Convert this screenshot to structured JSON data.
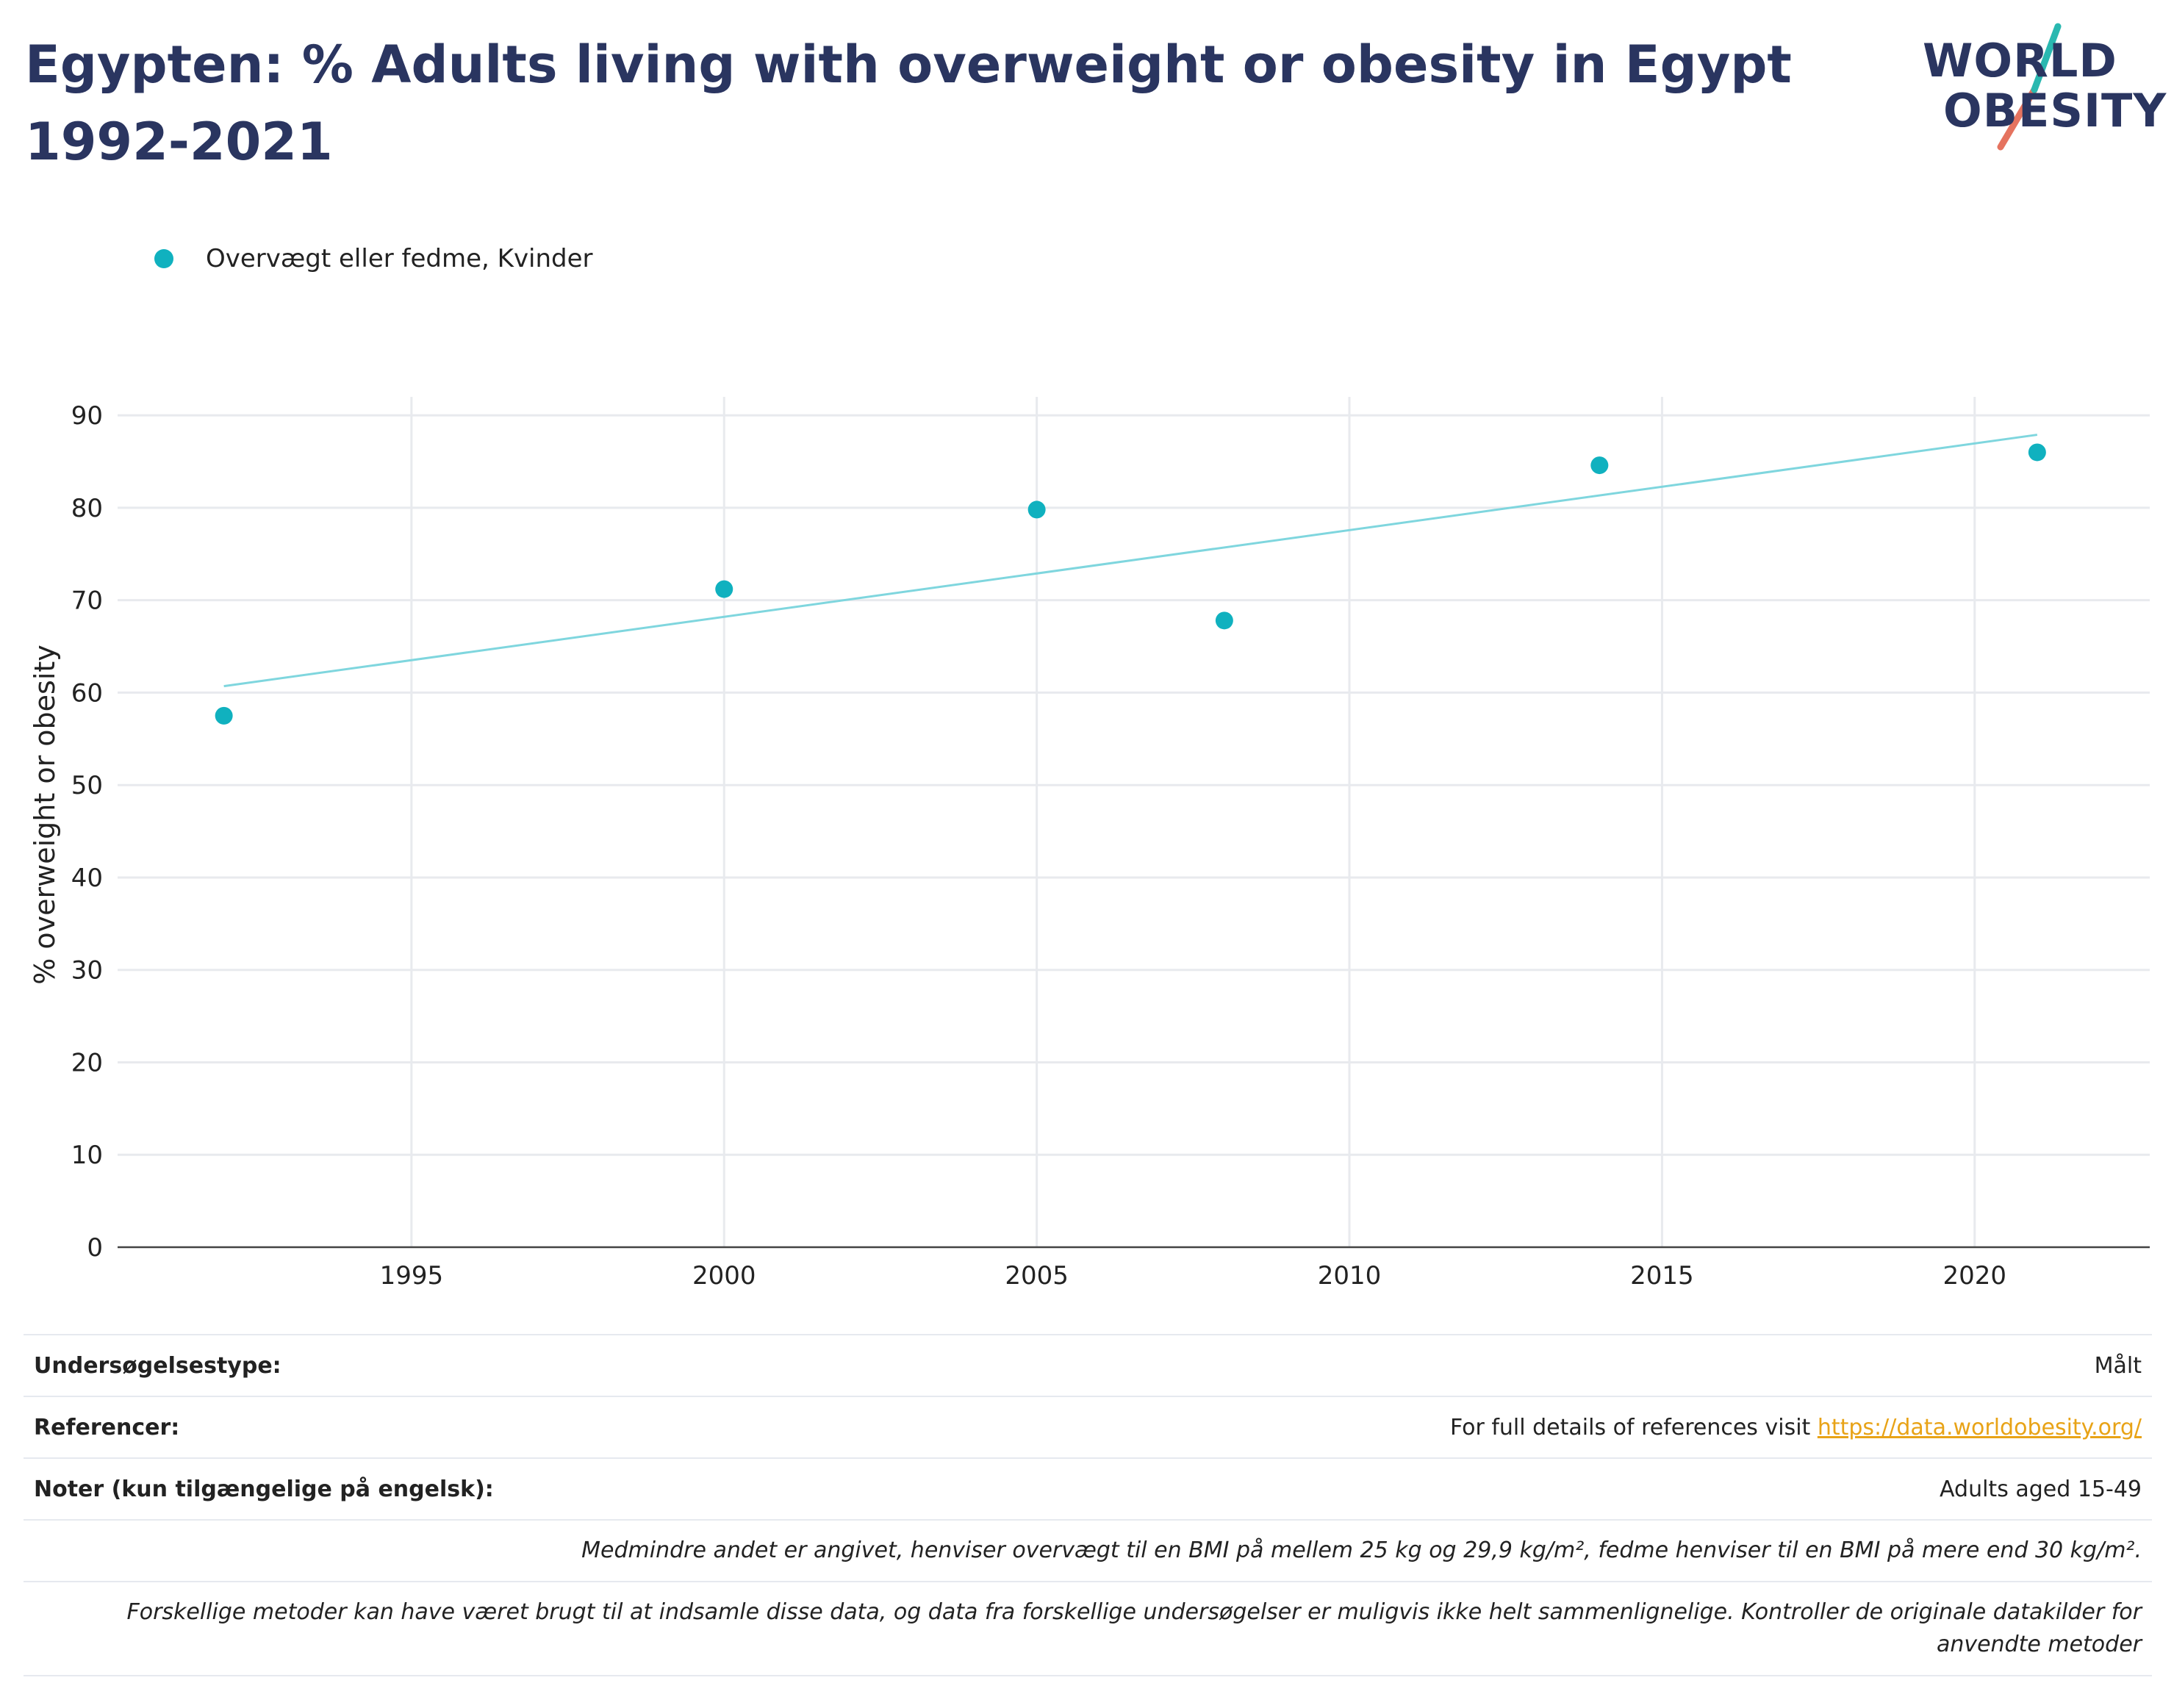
{
  "header": {
    "title": "Egypten: % Adults living with overweight or obesity in Egypt 1992-2021"
  },
  "logo": {
    "line1": "WORLD",
    "line2": "OBESITY",
    "accent_teal": "#2ab8b0",
    "accent_red": "#e5735f"
  },
  "legend": {
    "label": "Overvægt eller fedme, Kvinder"
  },
  "chart_data": {
    "type": "scatter",
    "title": "Egypten: % Adults living with overweight or obesity in Egypt 1992-2021",
    "xlabel": "",
    "ylabel": "% overweight or obesity",
    "xlim": [
      1990.3,
      2022.8
    ],
    "ylim": [
      0,
      92
    ],
    "xticks": [
      1995,
      2000,
      2005,
      2010,
      2015,
      2020
    ],
    "yticks": [
      0,
      10,
      20,
      30,
      40,
      50,
      60,
      70,
      80,
      90
    ],
    "grid": true,
    "legend_position": "top-left",
    "series": [
      {
        "name": "Overvægt eller fedme, Kvinder",
        "color": "#10b1bf",
        "points": [
          {
            "x": 1992,
            "y": 57.5
          },
          {
            "x": 2000,
            "y": 71.2
          },
          {
            "x": 2005,
            "y": 79.8
          },
          {
            "x": 2008,
            "y": 67.8
          },
          {
            "x": 2014,
            "y": 84.6
          },
          {
            "x": 2021,
            "y": 86.0
          }
        ]
      }
    ],
    "trendline": {
      "color": "#7fd6de",
      "start": {
        "x": 1992,
        "y": 60.7
      },
      "end": {
        "x": 2021,
        "y": 87.9
      }
    }
  },
  "info": {
    "survey_type_label": "Undersøgelsestype:",
    "survey_type_value": "Målt",
    "references_label": "Referencer:",
    "references_text": "For full details of references visit ",
    "references_link": "https://data.worldobesity.org/",
    "notes_label": "Noter (kun tilgængelige på engelsk):",
    "notes_value": "Adults aged 15-49",
    "definition_note": "Medmindre andet er angivet, henviser overvægt til en BMI på mellem 25 kg og 29,9 kg/m², fedme henviser til en BMI på mere end 30 kg/m².",
    "methods_note": "Forskellige metoder kan have været brugt til at indsamle disse data, og data fra forskellige undersøgelser er muligvis ikke helt sammenlignelige. Kontroller de originale datakilder for anvendte metoder"
  }
}
